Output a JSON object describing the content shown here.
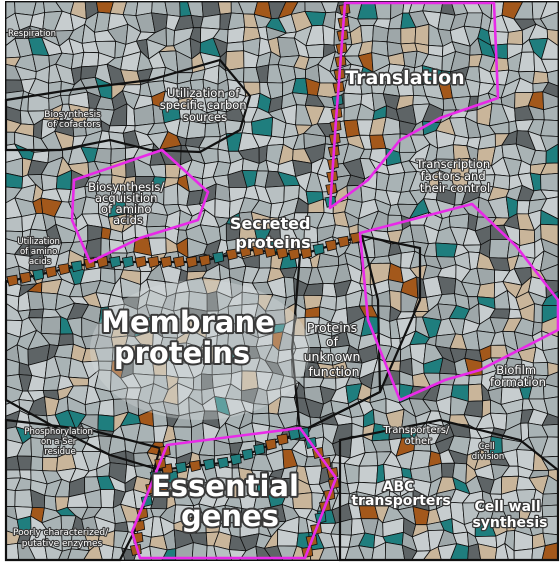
{
  "regions": [
    {
      "id": "membrane",
      "lines": [
        "Membrane",
        "proteins"
      ]
    },
    {
      "id": "essential",
      "lines": [
        "Essential",
        "genes"
      ]
    },
    {
      "id": "translation",
      "lines": [
        "Translation"
      ]
    },
    {
      "id": "secreted",
      "lines": [
        "Secreted",
        "proteins"
      ]
    },
    {
      "id": "unknown",
      "lines": [
        "Proteins",
        "of",
        "unknown",
        "function"
      ]
    },
    {
      "id": "abc",
      "lines": [
        "ABC",
        "transporters"
      ]
    },
    {
      "id": "cellwall",
      "lines": [
        "Cell wall",
        "synthesis"
      ]
    },
    {
      "id": "carbon",
      "lines": [
        "Utilization of",
        "specific carbon",
        "sources"
      ]
    },
    {
      "id": "transcription",
      "lines": [
        "Transcription",
        "factors and",
        "their control"
      ]
    },
    {
      "id": "aminoacids",
      "lines": [
        "Biosynthesis/",
        "acquisition",
        "of amino",
        "acids"
      ]
    },
    {
      "id": "biofilm",
      "lines": [
        "Biofilm",
        "formation"
      ]
    },
    {
      "id": "transporters",
      "lines": [
        "Transporters/",
        "other"
      ]
    },
    {
      "id": "biosyn-cofactors",
      "lines": [
        "Biosynthesis",
        "of cofactors"
      ]
    },
    {
      "id": "phosphorylation",
      "lines": [
        "Phosphorylation",
        "on a Ser",
        "residue"
      ]
    },
    {
      "id": "utilization-aa",
      "lines": [
        "Utilization",
        "of amino",
        "acids"
      ]
    },
    {
      "id": "poly",
      "lines": [
        "Poorly characterized/",
        "putative enzymes"
      ]
    },
    {
      "id": "cell-division",
      "lines": [
        "Cell",
        "division"
      ]
    },
    {
      "id": "respiration",
      "lines": [
        "Respiration"
      ]
    }
  ],
  "colors": {
    "background": "#ffffff",
    "cell_fill_a": "#a9b3b5",
    "cell_fill_b": "#c7cdcf",
    "cell_fill_dark": "#5e6466",
    "teal": "#1f7e7e",
    "brown": "#a3581b",
    "tan": "#c9b59a",
    "outline": "#111111",
    "highlight": "#e82ae8"
  }
}
